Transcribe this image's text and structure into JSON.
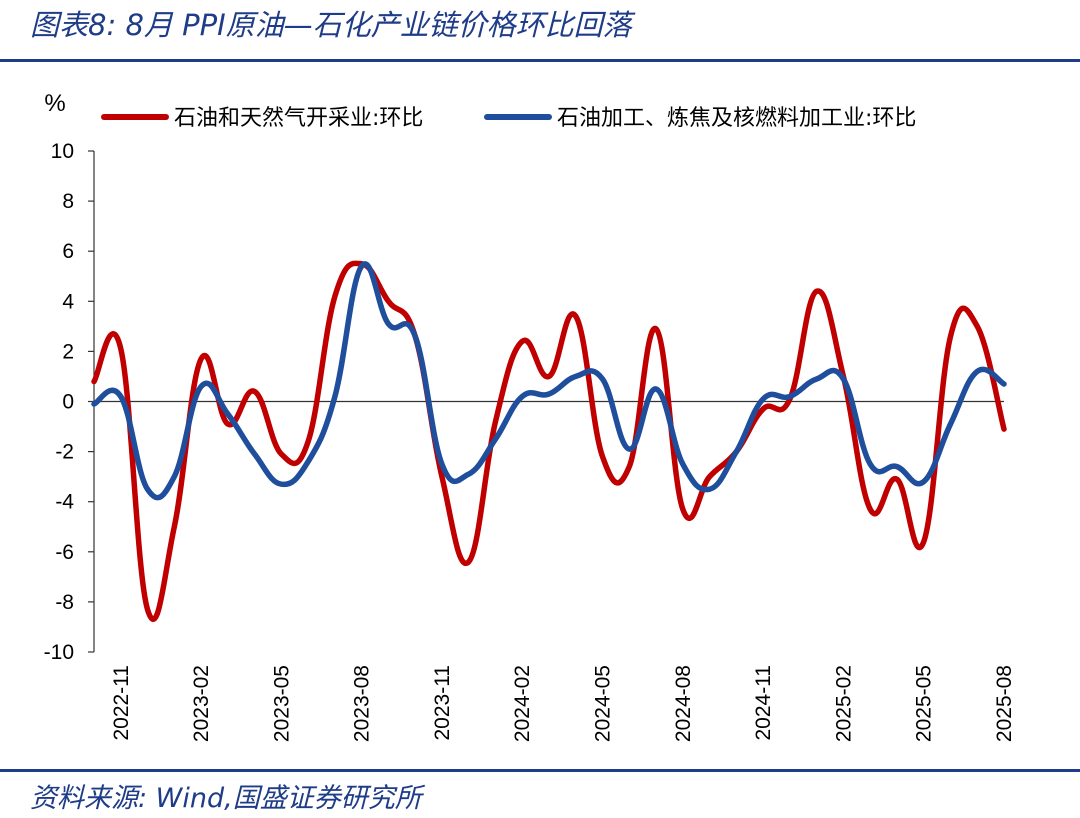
{
  "header": {
    "title": "图表8:  8月 PPI原油—石化产业链价格环比回落"
  },
  "footer": {
    "source": "资料来源:  Wind,国盛证券研究所"
  },
  "chart_data": {
    "type": "line",
    "unit_label": "%",
    "ylim": [
      -10,
      10
    ],
    "yticks": [
      10,
      8,
      6,
      4,
      2,
      0,
      -2,
      -4,
      -6,
      -8,
      -10
    ],
    "x": [
      "2022-10",
      "2022-11",
      "2022-12",
      "2023-01",
      "2023-02",
      "2023-03",
      "2023-04",
      "2023-05",
      "2023-06",
      "2023-07",
      "2023-08",
      "2023-09",
      "2023-10",
      "2023-11",
      "2023-12",
      "2024-01",
      "2024-02",
      "2024-03",
      "2024-04",
      "2024-05",
      "2024-06",
      "2024-07",
      "2024-08",
      "2024-09",
      "2024-10",
      "2024-11",
      "2024-12",
      "2025-01",
      "2025-02",
      "2025-03",
      "2025-04",
      "2025-05",
      "2025-06",
      "2025-07",
      "2025-08"
    ],
    "xtick_labels": [
      "2022-11",
      "2023-02",
      "2023-05",
      "2023-08",
      "2023-11",
      "2024-02",
      "2024-05",
      "2024-08",
      "2024-11",
      "2025-02",
      "2025-05",
      "2025-08"
    ],
    "grid": false,
    "legend_position": "top",
    "series": [
      {
        "name": "石油和天然气开采业:环比",
        "color": "#c00000",
        "values": [
          0.8,
          2.1,
          -8.3,
          -5.0,
          1.7,
          -0.9,
          0.4,
          -2.1,
          -1.6,
          4.2,
          5.5,
          4.0,
          2.6,
          -3.0,
          -6.4,
          -0.8,
          2.4,
          1.0,
          3.4,
          -2.2,
          -2.6,
          2.9,
          -4.3,
          -3.0,
          -2.0,
          -0.3,
          0.1,
          4.4,
          1.0,
          -4.3,
          -3.1,
          -5.6,
          2.6,
          3.0,
          -1.1
        ]
      },
      {
        "name": "石油加工、炼焦及核燃料加工业:环比",
        "color": "#1f4e9c",
        "values": [
          -0.1,
          0.2,
          -3.5,
          -3.0,
          0.6,
          -0.5,
          -2.1,
          -3.3,
          -2.4,
          0.2,
          5.4,
          3.1,
          2.6,
          -2.5,
          -2.9,
          -1.5,
          0.2,
          0.3,
          1.0,
          0.9,
          -1.9,
          0.5,
          -2.5,
          -3.5,
          -2.0,
          0.1,
          0.2,
          0.9,
          0.9,
          -2.5,
          -2.6,
          -3.2,
          -0.9,
          1.2,
          0.7
        ]
      }
    ]
  }
}
